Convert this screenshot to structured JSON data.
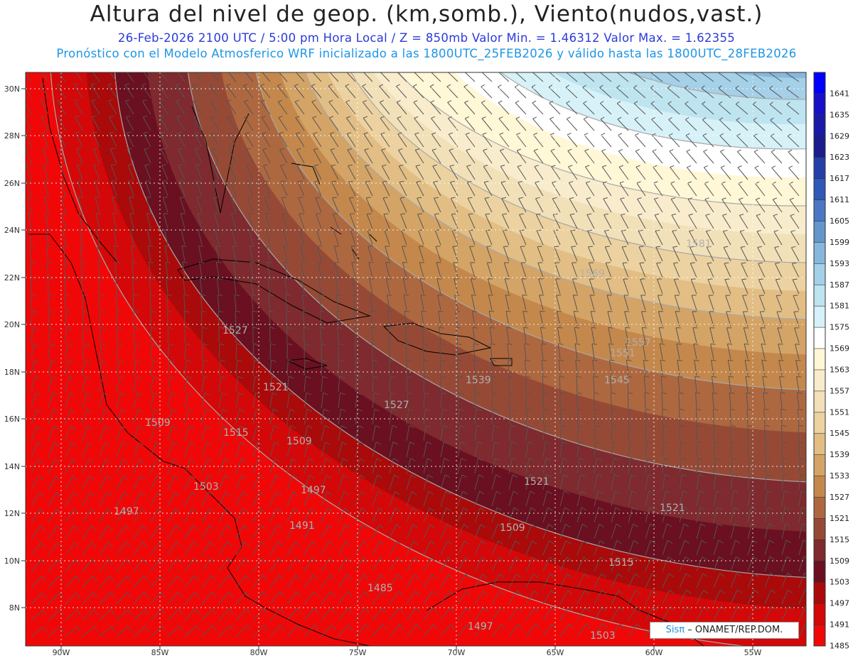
{
  "title": "Altura del nivel de geop. (km,somb.), Viento(nudos,vast.)",
  "subtitle": "26-Feb-2026  2100 UTC / 5:00 pm Hora Local / Z = 850mb    Valor Min. = 1.46312  Valor Max. = 1.62355",
  "subtitle2": "Pronóstico con el Modelo Atmosferico WRF inicializado a las 1800UTC_25FEB2026 y válido hasta las  1800UTC_28FEB2026",
  "credit": {
    "brand": "Sisπ",
    "org": "– ONAMET/REP.DOM."
  },
  "axes": {
    "lat_ticks": [
      "30N",
      "28N",
      "26N",
      "24N",
      "22N",
      "20N",
      "18N",
      "16N",
      "14N",
      "12N",
      "10N",
      "8N"
    ],
    "lon_ticks": [
      "90W",
      "85W",
      "80W",
      "75W",
      "70W",
      "65W",
      "60W",
      "55W"
    ]
  },
  "colorbar": {
    "labels": [
      "1641",
      "1635",
      "1629",
      "1623",
      "1617",
      "1611",
      "1605",
      "1599",
      "1593",
      "1587",
      "1581",
      "1575",
      "1569",
      "1563",
      "1557",
      "1551",
      "1545",
      "1539",
      "1533",
      "1527",
      "1521",
      "1515",
      "1509",
      "1503",
      "1497",
      "1491",
      "1485"
    ],
    "colors": [
      "#0000ff",
      "#1810c8",
      "#1a1aa8",
      "#1c1c8e",
      "#2440a8",
      "#3058b8",
      "#4a78c4",
      "#6496cc",
      "#86b8dc",
      "#a4d0e8",
      "#bee4f0",
      "#d6f2f8",
      "#ffffff",
      "#fff7d6",
      "#f8eccc",
      "#f2e0b8",
      "#ecd2a0",
      "#e2be84",
      "#d4a466",
      "#c4884c",
      "#ae6840",
      "#964a36",
      "#7e2a2e",
      "#6a1020",
      "#aa0a0a",
      "#d40808",
      "#f00808"
    ]
  },
  "contour_labels": [
    {
      "text": "1581"
    },
    {
      "text": "1569"
    },
    {
      "text": "1557"
    },
    {
      "text": "1551"
    },
    {
      "text": "1545"
    },
    {
      "text": "1539"
    },
    {
      "text": "1527"
    },
    {
      "text": "1521"
    },
    {
      "text": "1521"
    },
    {
      "text": "1515"
    },
    {
      "text": "1509"
    },
    {
      "text": "1509"
    },
    {
      "text": "1509"
    },
    {
      "text": "1503"
    },
    {
      "text": "1497"
    },
    {
      "text": "1497"
    },
    {
      "text": "1491"
    },
    {
      "text": "1485"
    },
    {
      "text": "1497"
    },
    {
      "text": "1515"
    },
    {
      "text": "1503"
    },
    {
      "text": "1521"
    },
    {
      "text": "1527"
    }
  ]
}
